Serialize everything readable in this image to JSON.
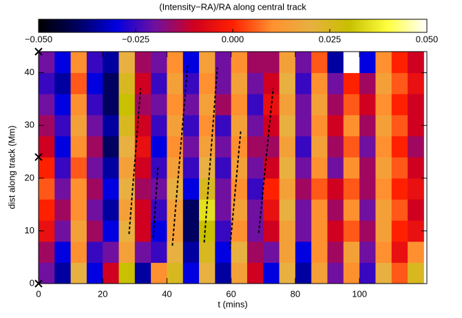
{
  "chart_data": {
    "type": "heatmap",
    "title": "(Intensity−RA)/RA along central track",
    "x_label": "t (mins)",
    "y_label": "dist along track (Mm)",
    "xlim": [
      0,
      121
    ],
    "ylim": [
      0,
      44
    ],
    "xticks": [
      0,
      20,
      40,
      60,
      80,
      100
    ],
    "yticks": [
      0,
      10,
      20,
      30,
      40
    ],
    "zlim": [
      -0.05,
      0.05
    ],
    "zticks": [
      {
        "value": -0.05,
        "label": "−0.050"
      },
      {
        "value": -0.025,
        "label": "−0.025"
      },
      {
        "value": 0,
        "label": "0.000"
      },
      {
        "value": 0.025,
        "label": "0.025"
      },
      {
        "value": 0.05,
        "label": "0.050"
      }
    ],
    "colormap": [
      "#000000",
      "#000060",
      "#0000e0",
      "#7010a0",
      "#d00020",
      "#ff2000",
      "#ff9030",
      "#e8b040",
      "#c8c000",
      "#ffff40",
      "#ffffff"
    ],
    "xbins": [
      0,
      5,
      10,
      15,
      20,
      25,
      30,
      35,
      40,
      45,
      50,
      55,
      60,
      65,
      70,
      75,
      80,
      85,
      90,
      95,
      100,
      105,
      110,
      115,
      120
    ],
    "ybins": [
      0,
      4,
      8,
      12,
      16,
      20,
      24,
      28,
      32,
      36,
      40,
      44
    ],
    "z": [
      [
        -0.02,
        -0.035,
        0.02,
        -0.03,
        -0.01,
        0.03,
        -0.035,
        0.01,
        0.025,
        -0.03,
        0.02,
        -0.035,
        0.015,
        -0.01,
        -0.03,
        0.02,
        -0.035,
        0.015,
        -0.02,
        0.01,
        -0.025,
        0.02,
        0.005,
        0.025
      ],
      [
        -0.015,
        -0.03,
        0.01,
        -0.025,
        -0.02,
        0.015,
        -0.02,
        -0.025,
        0.02,
        -0.035,
        0.025,
        -0.03,
        0.02,
        -0.015,
        -0.02,
        0.015,
        -0.03,
        0.01,
        -0.015,
        0.015,
        -0.02,
        0.01,
        -0.005,
        0.01
      ],
      [
        -0.005,
        -0.02,
        0.015,
        -0.015,
        -0.03,
        0.02,
        -0.01,
        -0.03,
        0.015,
        -0.04,
        0.03,
        -0.025,
        0.01,
        -0.02,
        -0.01,
        0.015,
        -0.02,
        0.01,
        -0.01,
        0.005,
        -0.015,
        0.015,
        0.0,
        -0.005
      ],
      [
        0.0,
        -0.015,
        0.01,
        -0.02,
        -0.035,
        0.015,
        -0.01,
        -0.025,
        0.015,
        -0.04,
        0.035,
        -0.02,
        0.015,
        -0.02,
        -0.005,
        0.02,
        -0.02,
        0.01,
        -0.015,
        0.01,
        -0.02,
        0.015,
        0.005,
        -0.01
      ],
      [
        0.005,
        -0.02,
        0.01,
        -0.015,
        -0.03,
        0.02,
        -0.015,
        -0.02,
        0.02,
        -0.03,
        0.025,
        -0.02,
        0.01,
        -0.025,
        0.0,
        0.015,
        -0.015,
        0.005,
        -0.01,
        0.005,
        -0.015,
        0.01,
        0.0,
        -0.005
      ],
      [
        0.0,
        -0.025,
        0.005,
        -0.02,
        -0.035,
        0.015,
        -0.01,
        -0.025,
        0.015,
        -0.025,
        0.02,
        -0.025,
        0.015,
        -0.02,
        -0.01,
        0.02,
        -0.02,
        0.01,
        -0.02,
        0.01,
        -0.015,
        0.015,
        0.005,
        -0.01
      ],
      [
        -0.01,
        -0.03,
        0.01,
        -0.015,
        -0.04,
        0.02,
        -0.005,
        -0.03,
        0.01,
        -0.02,
        0.015,
        -0.02,
        0.01,
        -0.015,
        -0.015,
        0.015,
        -0.025,
        0.015,
        -0.015,
        0.005,
        -0.02,
        0.01,
        0.0,
        -0.015
      ],
      [
        -0.015,
        -0.025,
        0.015,
        -0.02,
        -0.035,
        0.025,
        -0.01,
        -0.025,
        0.015,
        -0.025,
        0.01,
        -0.025,
        0.015,
        -0.02,
        -0.01,
        0.02,
        -0.02,
        0.01,
        -0.01,
        0.01,
        -0.015,
        0.015,
        0.005,
        -0.01
      ],
      [
        -0.02,
        -0.03,
        0.01,
        -0.025,
        -0.04,
        0.03,
        -0.015,
        -0.02,
        0.01,
        -0.02,
        0.015,
        -0.015,
        0.01,
        -0.025,
        -0.005,
        0.015,
        -0.02,
        0.015,
        -0.015,
        0.005,
        -0.01,
        0.01,
        0.0,
        -0.01
      ],
      [
        -0.025,
        -0.035,
        0.005,
        -0.03,
        -0.04,
        0.025,
        -0.01,
        -0.025,
        0.015,
        -0.025,
        0.01,
        -0.02,
        0.015,
        -0.02,
        -0.01,
        0.02,
        -0.025,
        0.01,
        -0.02,
        0.0,
        -0.015,
        0.015,
        0.005,
        -0.005
      ],
      [
        -0.02,
        -0.03,
        0.01,
        -0.025,
        -0.035,
        0.02,
        -0.015,
        -0.02,
        0.01,
        -0.03,
        0.015,
        -0.02,
        0.01,
        -0.015,
        -0.015,
        0.015,
        -0.02,
        0.005,
        -0.035,
        0.05,
        -0.03,
        0.01,
        0.0,
        -0.01
      ]
    ],
    "lines": [
      {
        "x": [
          28.2,
          31.8
        ],
        "y": [
          9.4,
          37
        ]
      },
      {
        "x": [
          35.7,
          37.2
        ],
        "y": [
          8.7,
          22
        ]
      },
      {
        "x": [
          41.7,
          46.5
        ],
        "y": [
          7.2,
          41.7
        ]
      },
      {
        "x": [
          51.6,
          55.7
        ],
        "y": [
          7.8,
          41
        ]
      },
      {
        "x": [
          59.6,
          63
        ],
        "y": [
          6.5,
          29
        ]
      },
      {
        "x": [
          68.6,
          73.1
        ],
        "y": [
          9.6,
          37
        ]
      }
    ],
    "markers": {
      "x": [
        0,
        0,
        0
      ],
      "y": [
        0,
        24,
        44
      ]
    }
  }
}
